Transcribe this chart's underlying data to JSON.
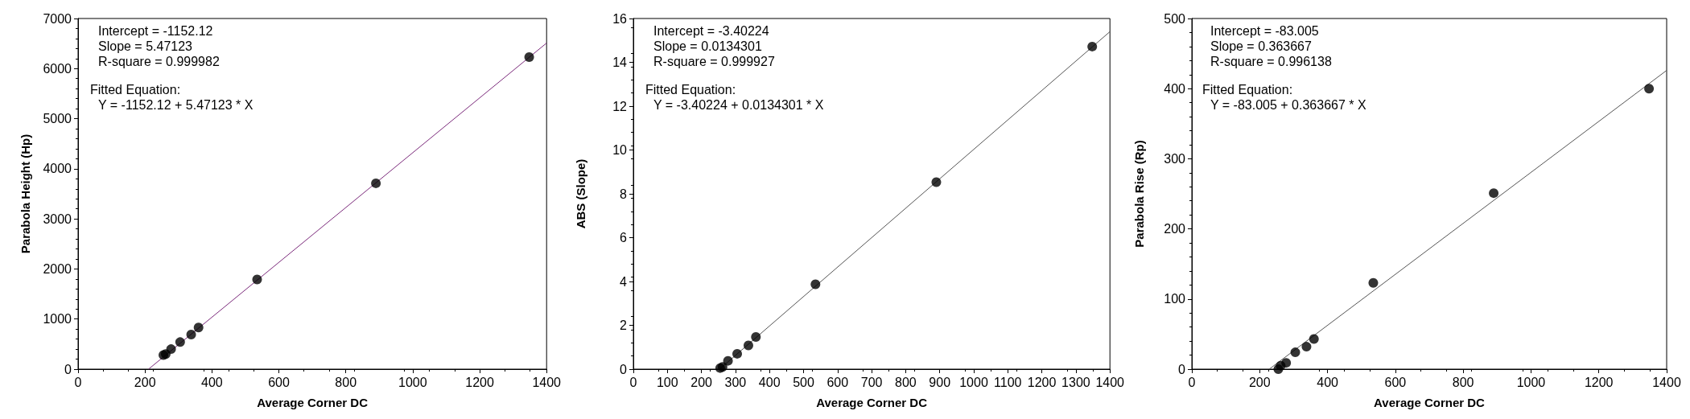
{
  "chart_data": [
    {
      "type": "scatter",
      "xlabel": "Average Corner DC",
      "ylabel": "Parabola Height (Hp)",
      "marker": "circle",
      "grid": false,
      "xlim": [
        0,
        1400
      ],
      "xticks": [
        0,
        200,
        400,
        600,
        800,
        1000,
        1200,
        1400
      ],
      "ylim": [
        0,
        7000
      ],
      "yticks": [
        0,
        1000,
        2000,
        3000,
        4000,
        5000,
        6000,
        7000
      ],
      "annotations": [
        "Intercept = -1152.12",
        "Slope = 5.47123",
        "R-square = 0.999982",
        "Fitted Equation:",
        "Y = -1152.12 + 5.47123 * X"
      ],
      "series": [
        {
          "color": "#000000",
          "x": [
            255,
            262,
            278,
            305,
            338,
            360,
            535,
            890,
            1348
          ],
          "values": [
            280,
            300,
            400,
            540,
            690,
            830,
            1790,
            3710,
            6230
          ]
        },
        {
          "type": "line",
          "color": "#7b2a7b",
          "marker": "none",
          "x": [
            210.6,
            1400
          ],
          "values": [
            0,
            6510
          ]
        }
      ]
    },
    {
      "type": "scatter",
      "xlabel": "Average Corner DC",
      "ylabel": "ABS (Slope)",
      "marker": "circle",
      "grid": false,
      "xlim": [
        0,
        1400
      ],
      "xticks": [
        0,
        100,
        200,
        300,
        400,
        500,
        600,
        700,
        800,
        900,
        1000,
        1100,
        1200,
        1300,
        1400
      ],
      "ylim": [
        0,
        16
      ],
      "yticks": [
        0,
        2,
        4,
        6,
        8,
        10,
        12,
        14,
        16
      ],
      "annotations": [
        "Intercept = -3.40224",
        "Slope = 0.0134301",
        "R-square = 0.999927",
        "Fitted Equation:",
        "Y = -3.40224 + 0.0134301 * X"
      ],
      "series": [
        {
          "color": "#000000",
          "x": [
            255,
            262,
            278,
            305,
            338,
            360,
            535,
            890,
            1348
          ],
          "values": [
            0.05,
            0.1,
            0.38,
            0.7,
            1.08,
            1.47,
            3.87,
            8.53,
            14.72
          ]
        },
        {
          "type": "line",
          "color": "#555555",
          "marker": "none",
          "x": [
            253.3,
            1400
          ],
          "values": [
            0,
            15.4
          ]
        }
      ]
    },
    {
      "type": "scatter",
      "xlabel": "Average Corner DC",
      "ylabel": "Parabola Rise (Rp)",
      "marker": "circle",
      "grid": false,
      "xlim": [
        0,
        1400
      ],
      "xticks": [
        0,
        200,
        400,
        600,
        800,
        1000,
        1200,
        1400
      ],
      "ylim": [
        0,
        500
      ],
      "yticks": [
        0,
        100,
        200,
        300,
        400,
        500
      ],
      "annotations": [
        "Intercept = -83.005",
        "Slope = 0.363667",
        "R-square = 0.996138",
        "Fitted Equation:",
        "Y = -83.005 + 0.363667 * X"
      ],
      "series": [
        {
          "color": "#000000",
          "x": [
            255,
            262,
            278,
            305,
            338,
            360,
            535,
            890,
            1348
          ],
          "values": [
            0,
            5,
            9,
            24,
            32,
            43,
            123,
            251,
            400
          ]
        },
        {
          "type": "line",
          "color": "#555555",
          "marker": "none",
          "x": [
            228.2,
            1400
          ],
          "values": [
            0,
            426
          ]
        }
      ]
    }
  ]
}
